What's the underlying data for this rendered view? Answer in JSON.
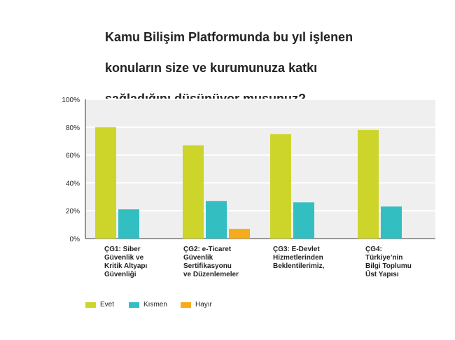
{
  "chart_data": {
    "type": "bar",
    "title_lines": [
      "Kamu Bilişim Platformunda bu yıl işlenen",
      "konuların size ve kurumunuza katkı",
      "sağladığını düşünüyor musunuz?"
    ],
    "categories": [
      "ÇG1: Siber\nGüvenlik ve\nKritik Altyapı\nGüvenliği",
      "ÇG2: e-Ticaret\nGüvenlik\nSertifikasyonu\nve Düzenlemeler",
      "ÇG3: E-Devlet\nHizmetlerinden\nBeklentilerimiz,",
      "ÇG4:\nTürkiye’nin\nBilgi Toplumu\nÜst Yapısı"
    ],
    "series": [
      {
        "name": "Evet",
        "color": "#cdd52b",
        "values": [
          80,
          67,
          75,
          78
        ]
      },
      {
        "name": "Kısmen",
        "color": "#33bfc2",
        "values": [
          21,
          27,
          26,
          23
        ]
      },
      {
        "name": "Hayır",
        "color": "#f6ab1c",
        "values": [
          0,
          7,
          0,
          0
        ]
      }
    ],
    "y_ticks": [
      "0%",
      "20%",
      "40%",
      "60%",
      "80%",
      "100%"
    ],
    "ylim": [
      0,
      100
    ],
    "grid": true,
    "legend_position": "bottom-left"
  }
}
